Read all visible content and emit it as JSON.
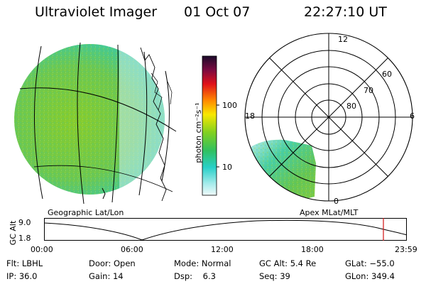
{
  "header": {
    "title": "Ultraviolet Imager",
    "date": "01 Oct 07",
    "time": "22:27:10 UT"
  },
  "colorbar": {
    "unit_label": "photon cm⁻²s⁻¹",
    "ticks": [
      "100",
      "10"
    ],
    "scale": "log"
  },
  "polar_plot": {
    "label": "Apex MLat/MLT",
    "mlt_labels": [
      "12",
      "18",
      "6",
      "0"
    ],
    "mlat_labels": [
      "60",
      "70",
      "80"
    ]
  },
  "geo_plot": {
    "label": "Geographic Lat/Lon"
  },
  "altitude_strip": {
    "ylabel": "GC Alt",
    "y_ticks": [
      "9.0",
      "1.8"
    ],
    "x_ticks": [
      "00:00",
      "06:00",
      "12:00",
      "18:00",
      "23:59"
    ],
    "current_time_marker_hour": 22.45
  },
  "status": {
    "flt": "Flt: LBHL",
    "ip": "IP: 36.0",
    "door": "Door: Open",
    "gain": "Gain: 14",
    "mode": "Mode: Normal",
    "dsp": "Dsp:    6.3",
    "gc_alt": "GC Alt: 5.4 Re",
    "seq": "Seq: 39",
    "glat": "GLat: −55.0",
    "glon": "GLon: 349.4"
  },
  "colors": {
    "marker": "#d01010",
    "foreground": "#000000",
    "background": "#ffffff"
  }
}
